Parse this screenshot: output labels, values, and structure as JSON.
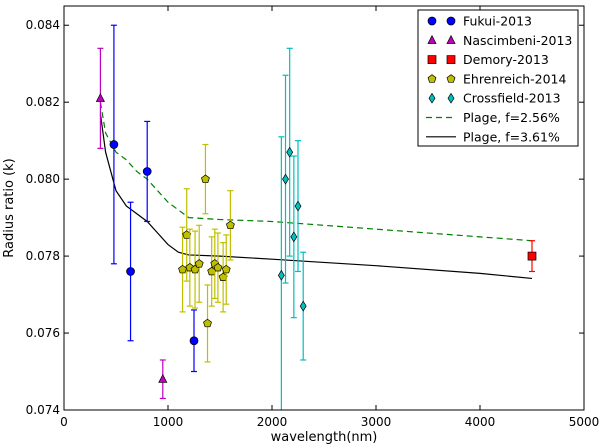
{
  "chart_data": {
    "type": "scatter",
    "title": "",
    "xlabel": "wavelength(nm)",
    "ylabel": "Radius ratio (k)",
    "xlim": [
      0,
      5000
    ],
    "ylim": [
      0.074,
      0.0845
    ],
    "xticks": [
      0,
      1000,
      2000,
      3000,
      4000,
      5000
    ],
    "xtick_labels": [
      "0",
      "1000",
      "2000",
      "3000",
      "4000",
      "5000"
    ],
    "yticks": [
      0.074,
      0.076,
      0.078,
      0.08,
      0.082,
      0.084
    ],
    "ytick_labels": [
      "0.074",
      "0.076",
      "0.078",
      "0.080",
      "0.082",
      "0.084"
    ],
    "grid": false,
    "legend_position": "top-right",
    "series": [
      {
        "name": "Fukui-2013",
        "marker": "circle",
        "color": "#0000ff",
        "points": [
          {
            "x": 480,
            "y": 0.0809,
            "yerr_lo": 0.0031,
            "yerr_hi": 0.0031
          },
          {
            "x": 640,
            "y": 0.0776,
            "yerr_lo": 0.0018,
            "yerr_hi": 0.0018
          },
          {
            "x": 800,
            "y": 0.0802,
            "yerr_lo": 0.0013,
            "yerr_hi": 0.0013
          },
          {
            "x": 1250,
            "y": 0.0758,
            "yerr_lo": 0.0008,
            "yerr_hi": 0.0008
          }
        ]
      },
      {
        "name": "Nascimbeni-2013",
        "marker": "triangle",
        "color": "#bf00bf",
        "points": [
          {
            "x": 350,
            "y": 0.0821,
            "yerr_lo": 0.0013,
            "yerr_hi": 0.0013
          },
          {
            "x": 950,
            "y": 0.0748,
            "yerr_lo": 0.0005,
            "yerr_hi": 0.0005
          }
        ]
      },
      {
        "name": "Demory-2013",
        "marker": "square",
        "color": "#ff0000",
        "points": [
          {
            "x": 4500,
            "y": 0.078,
            "yerr_lo": 0.0004,
            "yerr_hi": 0.0004
          }
        ]
      },
      {
        "name": "Ehrenreich-2014",
        "marker": "pentagon",
        "color": "#bfbf00",
        "points": [
          {
            "x": 1140,
            "y": 0.07765,
            "yerr_lo": 0.0011,
            "yerr_hi": 0.0011
          },
          {
            "x": 1180,
            "y": 0.07855,
            "yerr_lo": 0.0012,
            "yerr_hi": 0.0012
          },
          {
            "x": 1210,
            "y": 0.0777,
            "yerr_lo": 0.001,
            "yerr_hi": 0.001
          },
          {
            "x": 1260,
            "y": 0.07765,
            "yerr_lo": 0.001,
            "yerr_hi": 0.001
          },
          {
            "x": 1300,
            "y": 0.0778,
            "yerr_lo": 0.001,
            "yerr_hi": 0.001
          },
          {
            "x": 1360,
            "y": 0.08,
            "yerr_lo": 0.0009,
            "yerr_hi": 0.0009
          },
          {
            "x": 1380,
            "y": 0.07625,
            "yerr_lo": 0.001,
            "yerr_hi": 0.001
          },
          {
            "x": 1420,
            "y": 0.0776,
            "yerr_lo": 0.0009,
            "yerr_hi": 0.0009
          },
          {
            "x": 1450,
            "y": 0.0778,
            "yerr_lo": 0.0009,
            "yerr_hi": 0.0009
          },
          {
            "x": 1480,
            "y": 0.0777,
            "yerr_lo": 0.0009,
            "yerr_hi": 0.0009
          },
          {
            "x": 1530,
            "y": 0.07745,
            "yerr_lo": 0.0009,
            "yerr_hi": 0.0009
          },
          {
            "x": 1560,
            "y": 0.07765,
            "yerr_lo": 0.0009,
            "yerr_hi": 0.0009
          },
          {
            "x": 1600,
            "y": 0.0788,
            "yerr_lo": 0.0009,
            "yerr_hi": 0.0009
          }
        ]
      },
      {
        "name": "Crossfield-2013",
        "marker": "diamond",
        "color": "#00bfbf",
        "points": [
          {
            "x": 2090,
            "y": 0.0775,
            "yerr_lo": 0.0036,
            "yerr_hi": 0.0036
          },
          {
            "x": 2130,
            "y": 0.08,
            "yerr_lo": 0.0027,
            "yerr_hi": 0.0027
          },
          {
            "x": 2170,
            "y": 0.0807,
            "yerr_lo": 0.0027,
            "yerr_hi": 0.0027
          },
          {
            "x": 2210,
            "y": 0.0785,
            "yerr_lo": 0.0021,
            "yerr_hi": 0.0021
          },
          {
            "x": 2250,
            "y": 0.0793,
            "yerr_lo": 0.0017,
            "yerr_hi": 0.0017
          },
          {
            "x": 2300,
            "y": 0.0767,
            "yerr_lo": 0.0014,
            "yerr_hi": 0.0014
          }
        ]
      }
    ],
    "lines": [
      {
        "name": "Plage, f=2.56%",
        "style": "dashed",
        "color": "#008000",
        "x": [
          350,
          400,
          500,
          600,
          700,
          800,
          900,
          1000,
          1100,
          1200,
          1500,
          2000,
          3000,
          4000,
          4500
        ],
        "y": [
          0.082,
          0.0812,
          0.0807,
          0.0805,
          0.0802,
          0.08,
          0.0797,
          0.0794,
          0.0792,
          0.079,
          0.07895,
          0.0789,
          0.0787,
          0.0785,
          0.0784
        ]
      },
      {
        "name": "Plage, f=3.61%",
        "style": "solid",
        "color": "#000000",
        "x": [
          350,
          400,
          500,
          600,
          700,
          800,
          900,
          1000,
          1100,
          1200,
          1500,
          2000,
          3000,
          4000,
          4500
        ],
        "y": [
          0.0817,
          0.0807,
          0.0797,
          0.0793,
          0.0791,
          0.0789,
          0.0786,
          0.0783,
          0.0781,
          0.07803,
          0.078,
          0.07792,
          0.07775,
          0.07755,
          0.07742
        ]
      }
    ]
  }
}
